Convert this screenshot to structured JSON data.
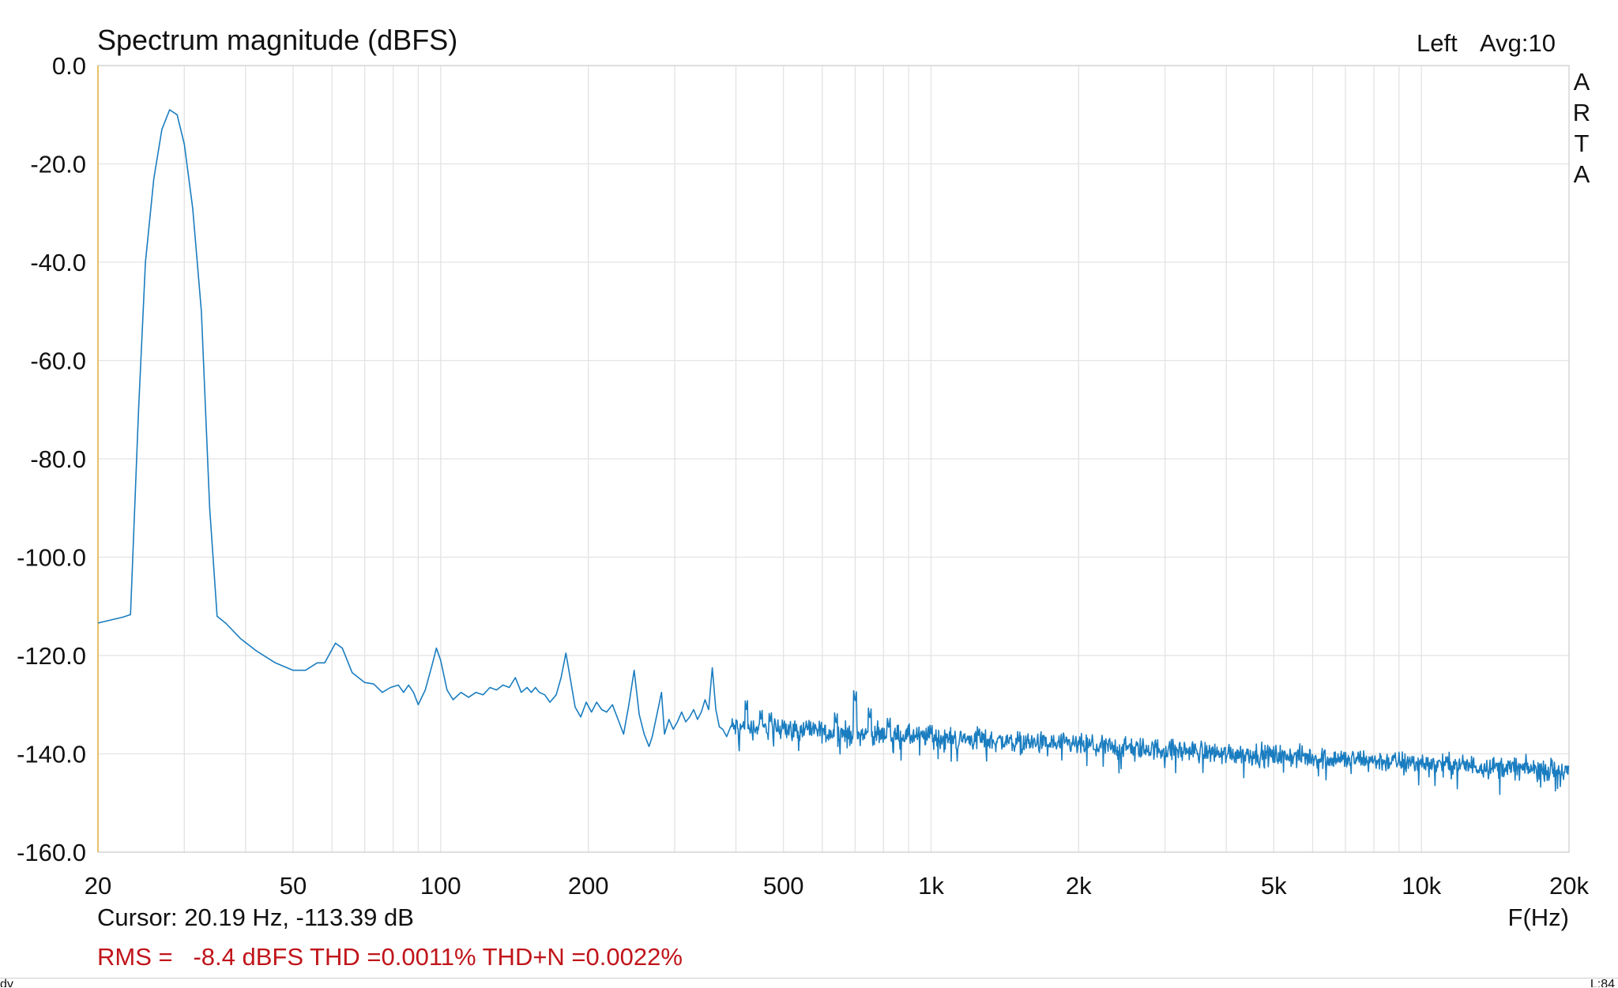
{
  "chart_data": {
    "type": "line",
    "title": "Spectrum magnitude (dBFS)",
    "channel_label": "Left",
    "avg_label": "Avg:10",
    "brand": "ARTA",
    "xlabel": "F(Hz)",
    "xscale": "log",
    "xlim": [
      20,
      20000
    ],
    "ylim": [
      -160,
      0
    ],
    "x_ticks": [
      {
        "value": 20,
        "label": "20"
      },
      {
        "value": 50,
        "label": "50"
      },
      {
        "value": 100,
        "label": "100"
      },
      {
        "value": 200,
        "label": "200"
      },
      {
        "value": 500,
        "label": "500"
      },
      {
        "value": 1000,
        "label": "1k"
      },
      {
        "value": 2000,
        "label": "2k"
      },
      {
        "value": 5000,
        "label": "5k"
      },
      {
        "value": 10000,
        "label": "10k"
      },
      {
        "value": 20000,
        "label": "20k"
      }
    ],
    "y_ticks": [
      {
        "value": 0,
        "label": "0.0"
      },
      {
        "value": -20,
        "label": "-20.0"
      },
      {
        "value": -40,
        "label": "-40.0"
      },
      {
        "value": -60,
        "label": "-60.0"
      },
      {
        "value": -80,
        "label": "-80.0"
      },
      {
        "value": -100,
        "label": "-100.0"
      },
      {
        "value": -120,
        "label": "-120.0"
      },
      {
        "value": -140,
        "label": "-140.0"
      },
      {
        "value": -160,
        "label": "-160.0"
      }
    ],
    "grid": true,
    "series": [
      {
        "color": "#1a7dc0",
        "points": [
          [
            20,
            -113.4
          ],
          [
            22.5,
            -112.2
          ],
          [
            23.3,
            -111.7
          ],
          [
            24.2,
            -70
          ],
          [
            25.0,
            -40
          ],
          [
            26.0,
            -23
          ],
          [
            27.0,
            -13
          ],
          [
            28.0,
            -9
          ],
          [
            29.0,
            -10
          ],
          [
            30.0,
            -16
          ],
          [
            31.2,
            -29
          ],
          [
            32.5,
            -50
          ],
          [
            33.8,
            -90
          ],
          [
            35.0,
            -112
          ],
          [
            36.5,
            -113.5
          ],
          [
            39,
            -116.5
          ],
          [
            42,
            -119
          ],
          [
            46,
            -121.5
          ],
          [
            50,
            -123
          ],
          [
            53,
            -123
          ],
          [
            56,
            -121.5
          ],
          [
            58,
            -121.5
          ],
          [
            61,
            -117.5
          ],
          [
            63,
            -118.5
          ],
          [
            66,
            -123.5
          ],
          [
            70,
            -125.5
          ],
          [
            73,
            -125.8
          ],
          [
            76,
            -127.5
          ],
          [
            79,
            -126.5
          ],
          [
            82,
            -126
          ],
          [
            84,
            -127.5
          ],
          [
            86,
            -126
          ],
          [
            88,
            -127.5
          ],
          [
            90,
            -130
          ],
          [
            93,
            -127
          ],
          [
            96,
            -122
          ],
          [
            98,
            -118.5
          ],
          [
            100,
            -121
          ],
          [
            103,
            -127
          ],
          [
            106,
            -129
          ],
          [
            110,
            -127.5
          ],
          [
            114,
            -128.5
          ],
          [
            118,
            -127.5
          ],
          [
            122,
            -128
          ],
          [
            126,
            -126.5
          ],
          [
            130,
            -127
          ],
          [
            134,
            -126
          ],
          [
            138,
            -126.5
          ],
          [
            142,
            -124.5
          ],
          [
            146,
            -127.5
          ],
          [
            150,
            -126.5
          ],
          [
            153,
            -127.5
          ],
          [
            156,
            -126.5
          ],
          [
            159,
            -127.5
          ],
          [
            163,
            -128
          ],
          [
            167,
            -129.5
          ],
          [
            172,
            -128
          ],
          [
            176,
            -124.5
          ],
          [
            180,
            -119.5
          ],
          [
            184,
            -125
          ],
          [
            188,
            -130.5
          ],
          [
            193,
            -132.5
          ],
          [
            198,
            -129.5
          ],
          [
            203,
            -131.5
          ],
          [
            208,
            -129.5
          ],
          [
            213,
            -131
          ],
          [
            218,
            -131.5
          ],
          [
            224,
            -130
          ],
          [
            230,
            -133
          ],
          [
            236,
            -136
          ],
          [
            242,
            -130
          ],
          [
            248,
            -123
          ],
          [
            254,
            -132
          ],
          [
            260,
            -136
          ],
          [
            266,
            -138.5
          ],
          [
            270,
            -136.5
          ],
          [
            276,
            -132
          ],
          [
            282,
            -127.5
          ],
          [
            286,
            -136
          ],
          [
            292,
            -133
          ],
          [
            298,
            -135
          ],
          [
            304,
            -133.5
          ],
          [
            310,
            -131.5
          ],
          [
            316,
            -133.5
          ],
          [
            322,
            -132.5
          ],
          [
            328,
            -131
          ],
          [
            334,
            -133
          ],
          [
            340,
            -131.5
          ],
          [
            346,
            -129
          ],
          [
            352,
            -131
          ],
          [
            358,
            -122.5
          ],
          [
            364,
            -131
          ],
          [
            370,
            -134.5
          ],
          [
            376,
            -135
          ],
          [
            383,
            -136.5
          ],
          [
            390,
            -134.5
          ]
        ],
        "noise_model": {
          "comment": "above 390 Hz the trace is a dense noise floor sloping from about -135 dB to about -143 dB at 20 kHz",
          "start_hz": 390,
          "end_hz": 20000,
          "floor_start_db": -134.5,
          "floor_end_db": -143.5,
          "spread_db": 3.2,
          "points_per_decade": 900,
          "peaks": [
            {
              "hz": 420,
              "db": -131
            },
            {
              "hz": 450,
              "db": -133
            },
            {
              "hz": 470,
              "db": -133.5
            },
            {
              "hz": 500,
              "db": -135
            },
            {
              "hz": 560,
              "db": -135.5
            },
            {
              "hz": 640,
              "db": -134
            },
            {
              "hz": 700,
              "db": -129.5
            },
            {
              "hz": 750,
              "db": -133
            },
            {
              "hz": 820,
              "db": -135
            },
            {
              "hz": 1000,
              "db": -136
            },
            {
              "hz": 1250,
              "db": -136.5
            }
          ]
        }
      }
    ]
  },
  "footer": {
    "cursor_text": "Cursor: 20.19 Hz, -113.39 dB",
    "stats_text": "RMS =   -8.4 dBFS THD =0.0011% THD+N =0.0022%",
    "status_left": "dy",
    "status_right": "L:84"
  }
}
